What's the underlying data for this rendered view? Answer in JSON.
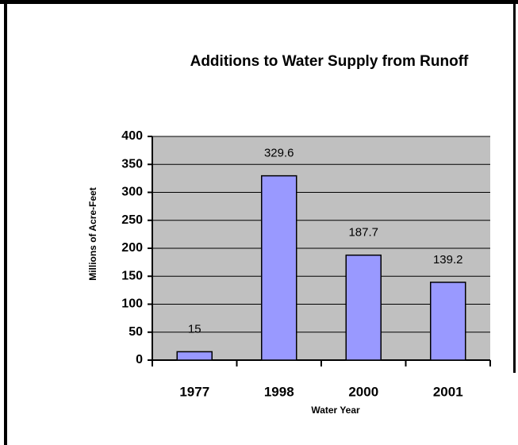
{
  "chart_data": {
    "type": "bar",
    "title": "Additions to Water Supply from Runoff",
    "categories": [
      "1977",
      "1998",
      "2000",
      "2001"
    ],
    "values": [
      15,
      329.6,
      187.7,
      139.2
    ],
    "color": "#9999ff",
    "ylim": [
      0,
      400
    ],
    "yticks": [
      0,
      50,
      100,
      150,
      200,
      250,
      300,
      350,
      400
    ],
    "grid": true,
    "xlabel": "Water Year",
    "ylabel": "Millions of Acre-Feet"
  }
}
